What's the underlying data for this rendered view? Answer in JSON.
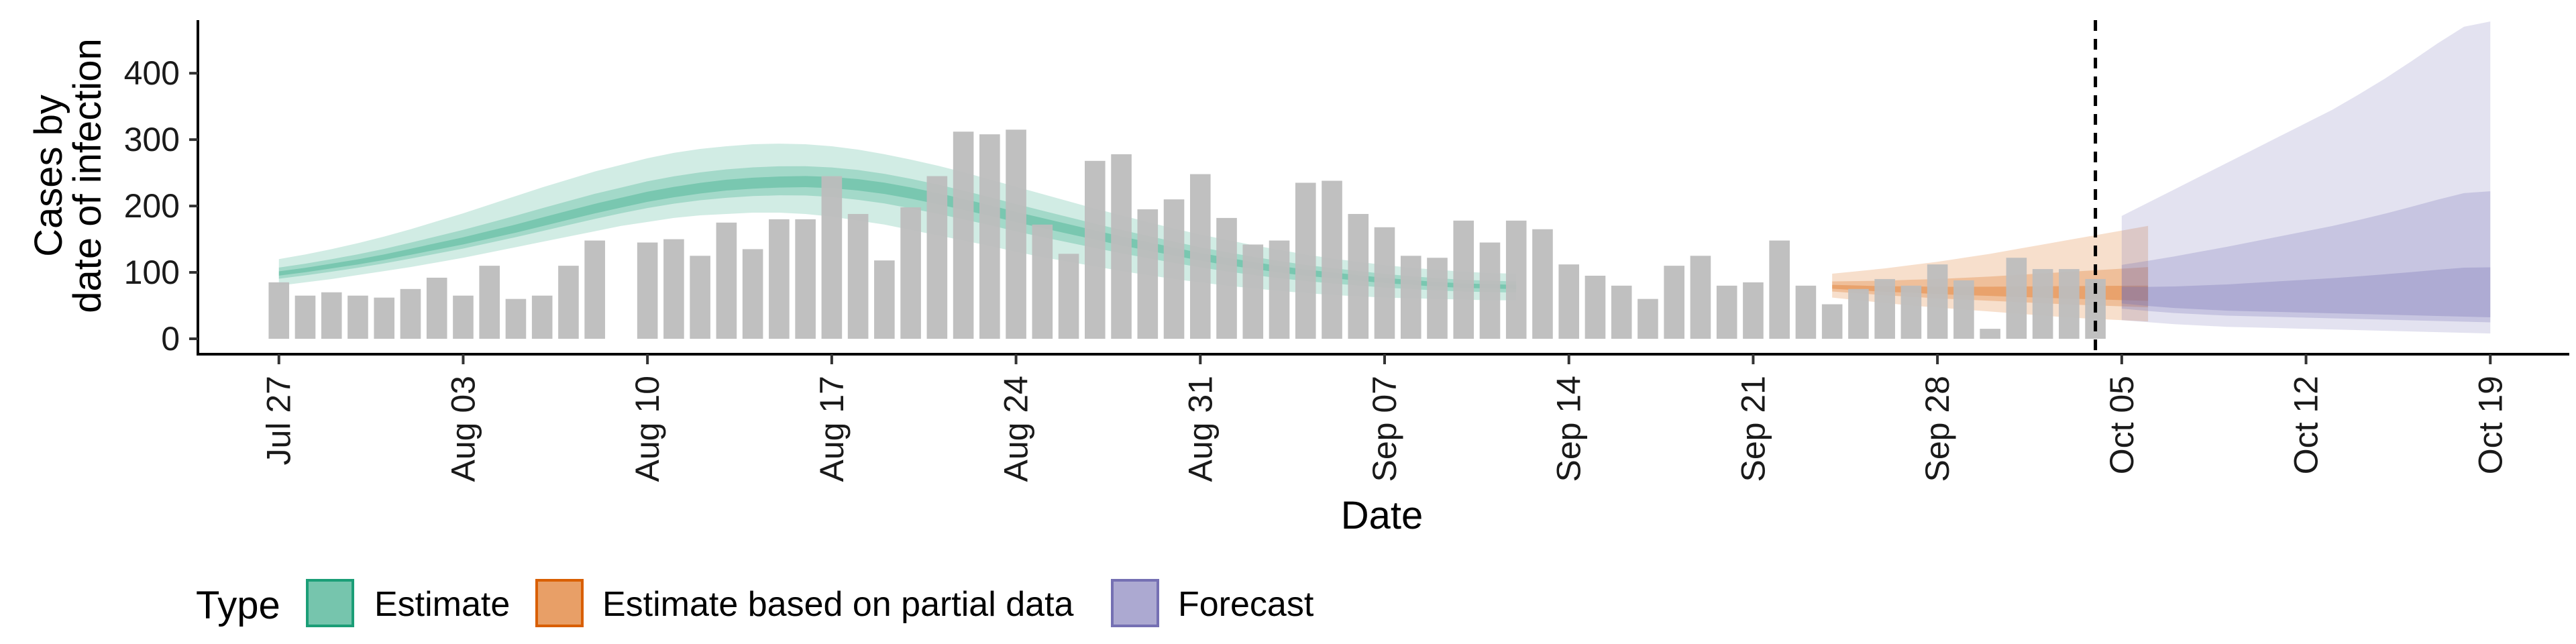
{
  "chart_data": {
    "type": "bar",
    "xlabel": "Date",
    "ylabel_line1": "Cases by",
    "ylabel_line2": "date of infection",
    "ylim": [
      0,
      480
    ],
    "yticks": [
      0,
      100,
      200,
      300,
      400
    ],
    "xlim": [
      "2020-07-24",
      "2020-10-22"
    ],
    "xtick_labels": [
      "Jul 27",
      "Aug 03",
      "Aug 10",
      "Aug 17",
      "Aug 24",
      "Aug 31",
      "Sep 07",
      "Sep 14",
      "Sep 21",
      "Sep 28",
      "Oct 05",
      "Oct 12",
      "Oct 19"
    ],
    "xtick_dates": [
      "2020-07-27",
      "2020-08-03",
      "2020-08-10",
      "2020-08-17",
      "2020-08-24",
      "2020-08-31",
      "2020-09-07",
      "2020-09-14",
      "2020-09-21",
      "2020-09-28",
      "2020-10-05",
      "2020-10-12",
      "2020-10-19"
    ],
    "forecast_start_line": "2020-10-04",
    "bars_start_date": "2020-07-27",
    "bar_values": [
      85,
      65,
      70,
      65,
      62,
      75,
      92,
      65,
      110,
      60,
      65,
      110,
      148,
      0,
      145,
      150,
      125,
      175,
      135,
      180,
      180,
      245,
      188,
      118,
      198,
      245,
      312,
      308,
      315,
      172,
      128,
      268,
      278,
      195,
      210,
      248,
      182,
      142,
      148,
      235,
      238,
      188,
      168,
      125,
      122,
      178,
      145,
      178,
      165,
      112,
      95,
      80,
      60,
      110,
      125,
      80,
      85,
      148,
      80,
      52,
      75,
      90,
      80,
      112,
      88,
      15,
      122,
      105,
      105,
      90
    ],
    "band_colors": {
      "Estimate": "#1b9e77",
      "Estimate based on partial data": "#d95f02",
      "Forecast": "#7570b3"
    },
    "bar_color": "#bdbdbd",
    "series": [
      {
        "name": "Estimate",
        "start_date": "2020-07-27",
        "median": [
          98,
          103,
          109,
          115,
          122,
          130,
          138,
          146,
          155,
          164,
          174,
          184,
          194,
          203,
          212,
          219,
          225,
          230,
          233,
          235,
          236,
          235,
          232,
          227,
          220,
          212,
          203,
          194,
          184,
          175,
          166,
          157,
          148,
          140,
          132,
          124,
          117,
          111,
          105,
          100,
          96,
          92,
          88,
          85,
          82,
          80,
          79,
          78
        ],
        "lower90": [
          80,
          85,
          90,
          96,
          102,
          108,
          115,
          122,
          130,
          138,
          146,
          154,
          162,
          170,
          176,
          182,
          186,
          188,
          190,
          190,
          188,
          184,
          178,
          172,
          164,
          156,
          148,
          140,
          131,
          123,
          116,
          109,
          102,
          96,
          90,
          85,
          80,
          76,
          72,
          69,
          66,
          64,
          62,
          61,
          60,
          59,
          58,
          58
        ],
        "upper90": [
          120,
          127,
          135,
          144,
          154,
          165,
          177,
          189,
          202,
          215,
          228,
          240,
          252,
          262,
          272,
          280,
          286,
          290,
          293,
          294,
          293,
          290,
          285,
          278,
          270,
          261,
          251,
          240,
          229,
          218,
          207,
          196,
          186,
          176,
          166,
          157,
          149,
          141,
          134,
          127,
          121,
          116,
          111,
          107,
          104,
          101,
          99,
          98
        ]
      },
      {
        "name": "Estimate based on partial data",
        "start_date": "2020-09-24",
        "median": [
          78,
          76,
          74,
          73,
          71,
          70,
          69,
          68,
          67,
          66,
          65,
          64,
          63
        ],
        "lower90": [
          62,
          58,
          54,
          50,
          47,
          44,
          41,
          38,
          35,
          32,
          30,
          28,
          26
        ],
        "upper90": [
          98,
          102,
          106,
          111,
          116,
          122,
          128,
          135,
          142,
          149,
          156,
          163,
          170
        ]
      },
      {
        "name": "Forecast",
        "start_date": "2020-10-05",
        "median": [
          58,
          54,
          51,
          49,
          47,
          46,
          45,
          44,
          43,
          42,
          41,
          40,
          39,
          38,
          37
        ],
        "lower90": [
          28,
          25,
          22,
          20,
          18,
          17,
          16,
          15,
          14,
          13,
          12,
          11,
          10,
          9,
          8
        ],
        "upper90": [
          185,
          205,
          225,
          245,
          265,
          285,
          305,
          325,
          345,
          368,
          392,
          418,
          445,
          470,
          478
        ]
      }
    ],
    "legend_title": "Type",
    "legend_items": [
      "Estimate",
      "Estimate based on partial data",
      "Forecast"
    ],
    "legend_position": "bottom-left"
  }
}
